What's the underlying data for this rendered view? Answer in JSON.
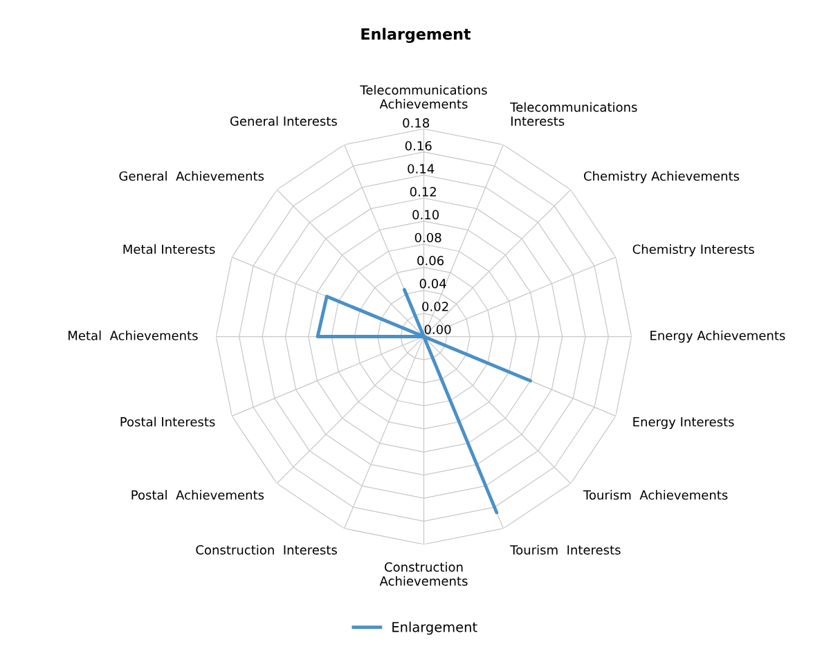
{
  "chart_data": {
    "type": "radar",
    "title": "Enlargement",
    "categories": [
      "Telecommunications\nAchievements",
      "Telecommunications\nInterests",
      "Chemistry Achievements",
      "Chemistry Interests",
      "Energy Achievements",
      "Energy Interests",
      "Tourism  Achievements",
      "Tourism  Interests",
      "Construction\nAchievements",
      "Construction  Interests",
      "Postal  Achievements",
      "Postal Interests",
      "Metal  Achievements",
      "Metal Interests",
      "General  Achievements",
      "General Interests"
    ],
    "series": [
      {
        "name": "Enlargement",
        "color": "#4a90c8",
        "values": [
          0,
          0,
          0,
          0,
          0,
          0.1,
          0,
          0.165,
          0,
          0,
          0,
          0,
          0.092,
          0.091,
          0,
          0.044
        ]
      }
    ],
    "ylim": [
      0,
      0.18
    ],
    "yticks": [
      {
        "value": 0,
        "label": "0.00"
      },
      {
        "value": 0.02,
        "label": "0.02"
      },
      {
        "value": 0.04,
        "label": "0.04"
      },
      {
        "value": 0.06,
        "label": "0.06"
      },
      {
        "value": 0.08,
        "label": "0.08"
      },
      {
        "value": 0.1,
        "label": "0.10"
      },
      {
        "value": 0.12,
        "label": "0.12"
      },
      {
        "value": 0.14,
        "label": "0.14"
      },
      {
        "value": 0.16,
        "label": "0.16"
      },
      {
        "value": 0.18,
        "label": "0.18"
      }
    ],
    "grid": true,
    "legend": "bottom",
    "marker": "none",
    "line_style": "solid"
  }
}
